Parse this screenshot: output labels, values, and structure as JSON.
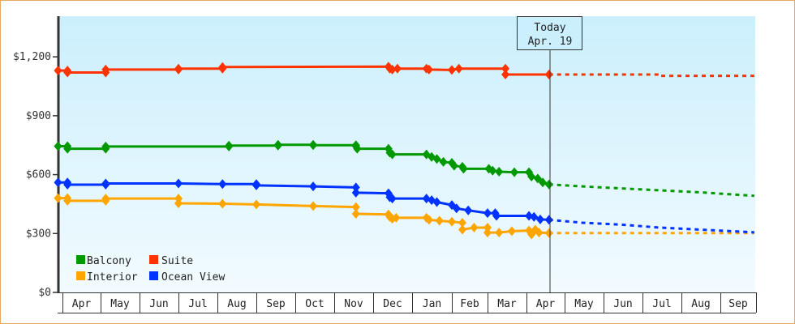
{
  "chart_data": {
    "type": "line",
    "title": "",
    "xlabel": "",
    "ylabel": "",
    "ylim": [
      0,
      1407
    ],
    "y_ticks": [
      "$0",
      "$300",
      "$600",
      "$900",
      "$1,200"
    ],
    "y_tick_values": [
      0,
      300,
      600,
      900,
      1200
    ],
    "x_ticks": [
      "Apr",
      "May",
      "Jun",
      "Jul",
      "Aug",
      "Sep",
      "Oct",
      "Nov",
      "Dec",
      "Jan",
      "Feb",
      "Mar",
      "Apr",
      "May",
      "Jun",
      "Jul",
      "Aug",
      "Sep"
    ],
    "grid": false,
    "legend_position": "bottom-left",
    "today_marker": {
      "line1": "Today",
      "line2": "Apr. 19",
      "date": "Apr 19"
    },
    "series": [
      {
        "name": "Balcony",
        "color": "#009900",
        "points": [
          [
            "Mar 28",
            745
          ],
          [
            "Apr 5",
            745
          ],
          [
            "Apr 5",
            732
          ],
          [
            "May 5",
            732
          ],
          [
            "May 5",
            743
          ],
          [
            "Aug 10",
            743
          ],
          [
            "Aug 10",
            748
          ],
          [
            "Sep 18",
            748
          ],
          [
            "Sep 18",
            752
          ],
          [
            "Oct 15",
            752
          ],
          [
            "Oct 15",
            750
          ],
          [
            "Nov 18",
            750
          ],
          [
            "Nov 18",
            745
          ],
          [
            "Nov 19",
            732
          ],
          [
            "Dec 13",
            732
          ],
          [
            "Dec 14",
            712
          ],
          [
            "Dec 16",
            703
          ],
          [
            "Jan 12",
            703
          ],
          [
            "Jan 16",
            690
          ],
          [
            "Jan 20",
            680
          ],
          [
            "Jan 25",
            665
          ],
          [
            "Feb 1",
            660
          ],
          [
            "Feb 3",
            645
          ],
          [
            "Feb 10",
            640
          ],
          [
            "Feb 11",
            630
          ],
          [
            "Mar 2",
            630
          ],
          [
            "Mar 5",
            620
          ],
          [
            "Mar 10",
            615
          ],
          [
            "Mar 22",
            612
          ],
          [
            "Apr 3",
            612
          ],
          [
            "Apr 5",
            590
          ],
          [
            "Apr 10",
            580
          ],
          [
            "Apr 14",
            560
          ],
          [
            "Apr 19",
            550
          ]
        ],
        "forecast": [
          [
            "Apr 19",
            550
          ],
          [
            "May 15",
            540
          ],
          [
            "Jun 15",
            530
          ],
          [
            "Jul 15",
            520
          ],
          [
            "Aug 15",
            510
          ],
          [
            "Sep 30",
            492
          ]
        ]
      },
      {
        "name": "Suite",
        "color": "#ff3300",
        "points": [
          [
            "Mar 28",
            1130
          ],
          [
            "Apr 5",
            1130
          ],
          [
            "Apr 5",
            1120
          ],
          [
            "May 5",
            1120
          ],
          [
            "May 5",
            1135
          ],
          [
            "Jul 1",
            1135
          ],
          [
            "Jul 1",
            1140
          ],
          [
            "Aug 5",
            1140
          ],
          [
            "Aug 5",
            1148
          ],
          [
            "Dec 13",
            1150
          ],
          [
            "Dec 14",
            1140
          ],
          [
            "Dec 16",
            1135
          ],
          [
            "Dec 20",
            1140
          ],
          [
            "Jan 12",
            1140
          ],
          [
            "Jan 14",
            1135
          ],
          [
            "Feb 1",
            1133
          ],
          [
            "Feb 7",
            1140
          ],
          [
            "Mar 15",
            1140
          ],
          [
            "Mar 15",
            1110
          ],
          [
            "Apr 19",
            1110
          ]
        ],
        "forecast": [
          [
            "Apr 19",
            1110
          ],
          [
            "Jul 15",
            1110
          ],
          [
            "Jul 15",
            1103
          ],
          [
            "Sep 30",
            1103
          ]
        ]
      },
      {
        "name": "Interior",
        "color": "#ffa500",
        "points": [
          [
            "Mar 28",
            480
          ],
          [
            "Apr 5",
            480
          ],
          [
            "Apr 5",
            467
          ],
          [
            "May 5",
            467
          ],
          [
            "May 5",
            478
          ],
          [
            "Jul 1",
            478
          ],
          [
            "Jul 1",
            454
          ],
          [
            "Aug 5",
            452
          ],
          [
            "Sep 1",
            448
          ],
          [
            "Oct 15",
            440
          ],
          [
            "Nov 18",
            435
          ],
          [
            "Nov 18",
            400
          ],
          [
            "Dec 13",
            397
          ],
          [
            "Dec 14",
            385
          ],
          [
            "Dec 16",
            375
          ],
          [
            "Dec 19",
            380
          ],
          [
            "Jan 12",
            380
          ],
          [
            "Jan 14",
            370
          ],
          [
            "Jan 22",
            365
          ],
          [
            "Feb 1",
            360
          ],
          [
            "Feb 10",
            355
          ],
          [
            "Feb 10",
            320
          ],
          [
            "Feb 20",
            330
          ],
          [
            "Mar 1",
            330
          ],
          [
            "Mar 1",
            305
          ],
          [
            "Mar 10",
            305
          ],
          [
            "Mar 20",
            312
          ],
          [
            "Apr 3",
            315
          ],
          [
            "Apr 5",
            295
          ],
          [
            "Apr 8",
            320
          ],
          [
            "Apr 11",
            305
          ],
          [
            "Apr 19",
            302
          ]
        ],
        "forecast": [
          [
            "Apr 19",
            302
          ],
          [
            "Sep 30",
            302
          ]
        ]
      },
      {
        "name": "Ocean View",
        "color": "#0033ff",
        "points": [
          [
            "Mar 28",
            560
          ],
          [
            "Apr 5",
            560
          ],
          [
            "Apr 5",
            549
          ],
          [
            "May 5",
            549
          ],
          [
            "May 5",
            555
          ],
          [
            "Jul 1",
            555
          ],
          [
            "Aug 5",
            552
          ],
          [
            "Sep 1",
            552
          ],
          [
            "Sep 1",
            545
          ],
          [
            "Oct 15",
            540
          ],
          [
            "Nov 18",
            535
          ],
          [
            "Nov 18",
            508
          ],
          [
            "Dec 13",
            505
          ],
          [
            "Dec 14",
            485
          ],
          [
            "Dec 16",
            478
          ],
          [
            "Jan 12",
            478
          ],
          [
            "Jan 16",
            470
          ],
          [
            "Jan 20",
            460
          ],
          [
            "Feb 1",
            445
          ],
          [
            "Feb 5",
            428
          ],
          [
            "Feb 15",
            418
          ],
          [
            "Mar 1",
            404
          ],
          [
            "Mar 7",
            404
          ],
          [
            "Mar 8",
            390
          ],
          [
            "Apr 3",
            390
          ],
          [
            "Apr 7",
            385
          ],
          [
            "Apr 12",
            372
          ],
          [
            "Apr 19",
            370
          ]
        ],
        "forecast": [
          [
            "Apr 19",
            370
          ],
          [
            "May 15",
            355
          ],
          [
            "Jun 15",
            345
          ],
          [
            "Jul 15",
            330
          ],
          [
            "Aug 15",
            320
          ],
          [
            "Sep 30",
            306
          ]
        ]
      }
    ]
  }
}
